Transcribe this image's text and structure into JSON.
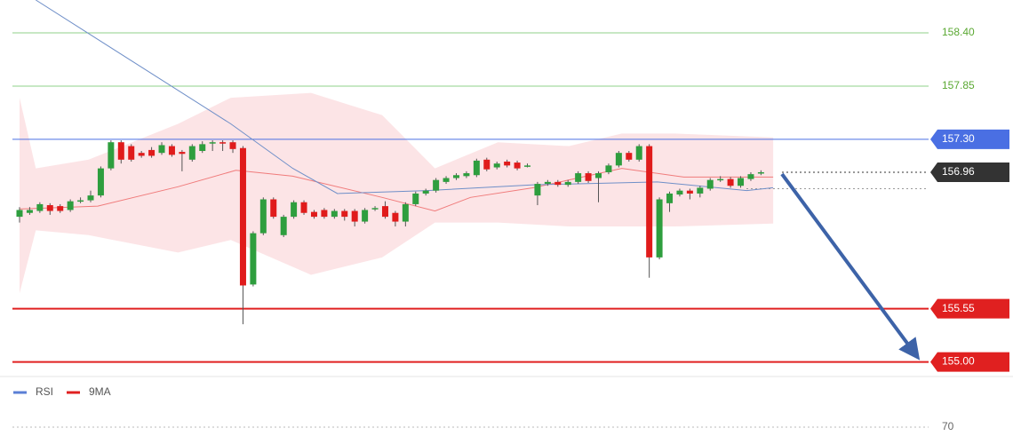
{
  "chart_data": {
    "type": "candlestick",
    "ylim": [
      154.84,
      158.74
    ],
    "up_color": "#2e9e3e",
    "down_color": "#e01b1b",
    "ohlc": [
      [
        156.5,
        156.6,
        156.44,
        156.57
      ],
      [
        156.54,
        156.6,
        156.52,
        156.57
      ],
      [
        156.56,
        156.65,
        156.54,
        156.63
      ],
      [
        156.62,
        156.64,
        156.52,
        156.56
      ],
      [
        156.61,
        156.63,
        156.54,
        156.56
      ],
      [
        156.57,
        156.68,
        156.55,
        156.66
      ],
      [
        156.66,
        156.7,
        156.64,
        156.67
      ],
      [
        156.67,
        156.77,
        156.65,
        156.72
      ],
      [
        156.72,
        157.02,
        156.7,
        157.0
      ],
      [
        157.0,
        157.29,
        156.98,
        157.27
      ],
      [
        157.27,
        157.29,
        157.05,
        157.09
      ],
      [
        157.23,
        157.25,
        157.07,
        157.09
      ],
      [
        157.16,
        157.18,
        157.11,
        157.13
      ],
      [
        157.19,
        157.22,
        157.11,
        157.13
      ],
      [
        157.16,
        157.27,
        157.14,
        157.24
      ],
      [
        157.23,
        157.25,
        157.12,
        157.14
      ],
      [
        157.17,
        157.19,
        156.97,
        157.15
      ],
      [
        157.09,
        157.25,
        157.07,
        157.23
      ],
      [
        157.18,
        157.28,
        157.16,
        157.25
      ],
      [
        157.26,
        157.29,
        157.18,
        157.27
      ],
      [
        157.27,
        157.29,
        157.18,
        157.26
      ],
      [
        157.27,
        157.29,
        157.16,
        157.2
      ],
      [
        157.21,
        157.23,
        155.39,
        155.79
      ],
      [
        155.8,
        156.35,
        155.78,
        156.33
      ],
      [
        156.33,
        156.7,
        156.31,
        156.68
      ],
      [
        156.68,
        156.7,
        156.48,
        156.5
      ],
      [
        156.31,
        156.52,
        156.29,
        156.5
      ],
      [
        156.5,
        156.67,
        156.48,
        156.65
      ],
      [
        156.65,
        156.67,
        156.52,
        156.54
      ],
      [
        156.55,
        156.57,
        156.48,
        156.5
      ],
      [
        156.57,
        156.59,
        156.48,
        156.5
      ],
      [
        156.5,
        156.58,
        156.48,
        156.56
      ],
      [
        156.56,
        156.58,
        156.46,
        156.5
      ],
      [
        156.56,
        156.58,
        156.4,
        156.45
      ],
      [
        156.45,
        156.59,
        156.43,
        156.57
      ],
      [
        156.58,
        156.61,
        156.56,
        156.59
      ],
      [
        156.61,
        156.66,
        156.48,
        156.5
      ],
      [
        156.54,
        156.56,
        156.4,
        156.45
      ],
      [
        156.45,
        156.65,
        156.4,
        156.63
      ],
      [
        156.63,
        156.76,
        156.61,
        156.74
      ],
      [
        156.74,
        156.79,
        156.72,
        156.77
      ],
      [
        156.77,
        156.9,
        156.75,
        156.88
      ],
      [
        156.86,
        156.92,
        156.84,
        156.9
      ],
      [
        156.9,
        156.95,
        156.88,
        156.93
      ],
      [
        156.92,
        156.97,
        156.9,
        156.95
      ],
      [
        156.93,
        157.1,
        156.91,
        157.08
      ],
      [
        157.09,
        157.11,
        156.97,
        156.99
      ],
      [
        157.01,
        157.07,
        156.99,
        157.05
      ],
      [
        157.07,
        157.09,
        157.01,
        157.03
      ],
      [
        157.06,
        157.08,
        156.98,
        157.0
      ],
      [
        157.03,
        157.05,
        157.01,
        157.03
      ],
      [
        156.72,
        156.86,
        156.62,
        156.84
      ],
      [
        156.84,
        156.88,
        156.82,
        156.86
      ],
      [
        156.86,
        156.88,
        156.81,
        156.83
      ],
      [
        156.83,
        156.88,
        156.81,
        156.86
      ],
      [
        156.86,
        156.97,
        156.84,
        156.95
      ],
      [
        156.95,
        156.97,
        156.85,
        156.87
      ],
      [
        156.9,
        156.97,
        156.65,
        156.95
      ],
      [
        156.96,
        157.05,
        156.94,
        157.03
      ],
      [
        157.03,
        157.18,
        157.01,
        157.16
      ],
      [
        157.16,
        157.18,
        157.07,
        157.09
      ],
      [
        157.09,
        157.25,
        157.07,
        157.23
      ],
      [
        157.23,
        157.25,
        155.87,
        156.08
      ],
      [
        156.08,
        156.7,
        156.06,
        156.68
      ],
      [
        156.64,
        156.76,
        156.55,
        156.74
      ],
      [
        156.73,
        156.79,
        156.71,
        156.77
      ],
      [
        156.77,
        156.79,
        156.68,
        156.74
      ],
      [
        156.74,
        156.82,
        156.7,
        156.8
      ],
      [
        156.79,
        156.9,
        156.77,
        156.88
      ],
      [
        156.88,
        156.92,
        156.86,
        156.89
      ],
      [
        156.89,
        156.91,
        156.8,
        156.82
      ],
      [
        156.82,
        156.92,
        156.8,
        156.9
      ],
      [
        156.89,
        156.96,
        156.87,
        156.94
      ],
      [
        156.95,
        156.98,
        156.93,
        156.96
      ]
    ],
    "band": {
      "color": "#fbd9dc",
      "x": [
        0,
        1.6,
        6.8,
        15.6,
        20.8,
        28.7,
        35.7,
        40.9,
        47.1,
        54.1,
        59.3,
        64.6,
        74.2
      ],
      "upper": [
        157.73,
        157.0,
        157.09,
        157.46,
        157.73,
        157.78,
        157.55,
        157.0,
        157.27,
        157.23,
        157.36,
        157.36,
        157.32
      ],
      "lower": [
        155.71,
        156.36,
        156.31,
        156.13,
        156.26,
        155.9,
        156.08,
        156.44,
        156.44,
        156.4,
        156.4,
        156.4,
        156.43
      ]
    },
    "overlays": [
      {
        "color": "#f07b7b",
        "x": [
          0,
          7.7,
          15.6,
          21.3,
          26.9,
          35.7,
          40.9,
          44.4,
          50.6,
          59.3,
          65.4,
          74.2
        ],
        "values": [
          156.58,
          156.61,
          156.81,
          156.98,
          156.92,
          156.7,
          156.56,
          156.7,
          156.8,
          157.0,
          156.91,
          156.91
        ]
      },
      {
        "color": "#6f8fc8",
        "x": [
          1.6,
          20.8,
          26.9,
          31.3,
          40.1,
          50.6,
          62.8,
          71.6,
          74.2
        ],
        "values": [
          158.74,
          157.46,
          157.0,
          156.74,
          156.77,
          156.83,
          156.86,
          156.77,
          156.8
        ]
      }
    ],
    "levels": [
      {
        "value": 158.4,
        "label": "158.40",
        "color": "#8fd18a",
        "text_color": "#5aa832",
        "line": "solid",
        "box": false
      },
      {
        "value": 157.85,
        "label": "157.85",
        "color": "#8fd18a",
        "text_color": "#5aa832",
        "line": "solid",
        "box": false
      },
      {
        "value": 157.3,
        "label": "157.30",
        "color": "#4a6fe3",
        "text_color": "#ffffff",
        "line": "solid",
        "box": true
      },
      {
        "value": 156.96,
        "label": "156.96",
        "color": "#333333",
        "text_color": "#ffffff",
        "line": "dotted",
        "box": true
      },
      {
        "value": 156.79,
        "color": "#999999",
        "line": "dotted",
        "box": false
      },
      {
        "value": 155.55,
        "label": "155.55",
        "color": "#e02020",
        "text_color": "#ffffff",
        "line": "solid",
        "box": true
      },
      {
        "value": 155.0,
        "label": "155.00",
        "color": "#e02020",
        "text_color": "#ffffff",
        "line": "solid",
        "box": true
      }
    ],
    "rsi_panel": {
      "legend": [
        {
          "name": "RSI",
          "color": "#5b7fd6"
        },
        {
          "name": "9MA",
          "color": "#e02020"
        }
      ],
      "yticks": [
        70
      ]
    }
  }
}
